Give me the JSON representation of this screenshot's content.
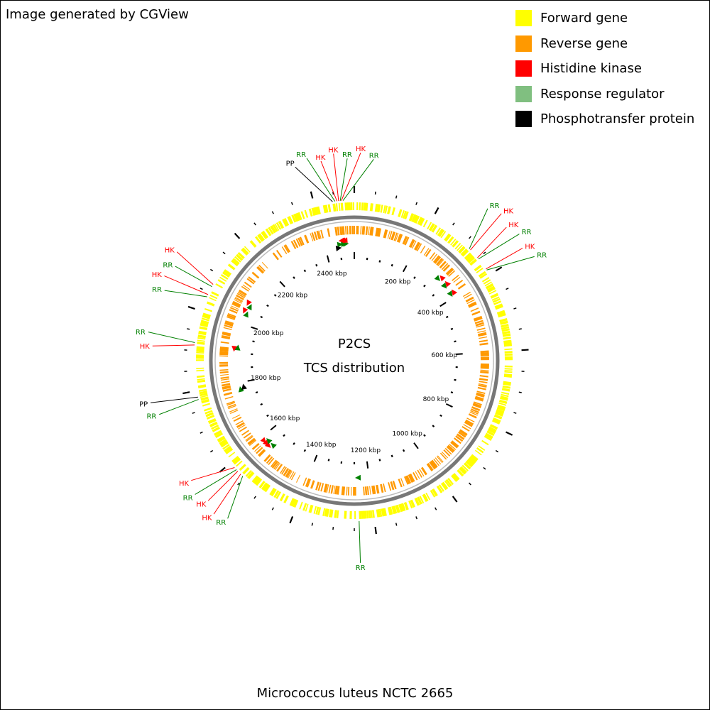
{
  "credit": "Image generated by CGView",
  "center": {
    "line1": "P2CS",
    "line2": "TCS distribution"
  },
  "footer": "Micrococcus luteus NCTC 2665",
  "genome_size_kbp": 2500,
  "legend": [
    {
      "key": "forward",
      "label": "Forward gene",
      "color": "#ffff00"
    },
    {
      "key": "reverse",
      "label": "Reverse gene",
      "color": "#ff9900"
    },
    {
      "key": "hk",
      "label": "Histidine kinase",
      "color": "#ff0000"
    },
    {
      "key": "rr",
      "label": "Response regulator",
      "color": "#80bf80"
    },
    {
      "key": "pp",
      "label": "Phosphotransfer protein",
      "color": "#000000"
    }
  ],
  "ring_colors": {
    "forward": "#ffff00",
    "reverse": "#ff9900",
    "backbone": "#777777",
    "hk_marker": "#ff0000",
    "rr_marker": "#008000",
    "pp_marker": "#000000",
    "hk_label": "#ff0000",
    "rr_label": "#008000",
    "pp_label": "#000000"
  },
  "tick_labels": [
    {
      "kbp": 200,
      "label": "200 kbp"
    },
    {
      "kbp": 400,
      "label": "400 kbp"
    },
    {
      "kbp": 600,
      "label": "600 kbp"
    },
    {
      "kbp": 800,
      "label": "800 kbp"
    },
    {
      "kbp": 1000,
      "label": "1000 kbp"
    },
    {
      "kbp": 1200,
      "label": "1200 kbp"
    },
    {
      "kbp": 1400,
      "label": "1400 kbp"
    },
    {
      "kbp": 1600,
      "label": "1600 kbp"
    },
    {
      "kbp": 1800,
      "label": "1800 kbp"
    },
    {
      "kbp": 2000,
      "label": "2000 kbp"
    },
    {
      "kbp": 2200,
      "label": "2200 kbp"
    },
    {
      "kbp": 2400,
      "label": "2400 kbp"
    }
  ],
  "features": [
    {
      "type": "RR",
      "kbp": 2472,
      "strand": "fwd"
    },
    {
      "type": "HK",
      "kbp": 2468,
      "strand": "rev"
    },
    {
      "type": "RR",
      "kbp": 2465,
      "strand": "fwd"
    },
    {
      "type": "HK",
      "kbp": 2461,
      "strand": "rev"
    },
    {
      "type": "HK",
      "kbp": 2457,
      "strand": "rev"
    },
    {
      "type": "RR",
      "kbp": 2452,
      "strand": "fwd"
    },
    {
      "type": "PP",
      "kbp": 2446,
      "strand": "fwd"
    },
    {
      "type": "RR",
      "kbp": 318,
      "strand": "fwd"
    },
    {
      "type": "HK",
      "kbp": 322,
      "strand": "rev"
    },
    {
      "type": "HK",
      "kbp": 348,
      "strand": "rev"
    },
    {
      "type": "RR",
      "kbp": 352,
      "strand": "fwd"
    },
    {
      "type": "HK",
      "kbp": 383,
      "strand": "rev"
    },
    {
      "type": "RR",
      "kbp": 386,
      "strand": "fwd"
    },
    {
      "type": "RR",
      "kbp": 1238,
      "strand": "fwd"
    },
    {
      "type": "RR",
      "kbp": 1556,
      "strand": "fwd"
    },
    {
      "type": "HK",
      "kbp": 1563,
      "strand": "rev"
    },
    {
      "type": "HK",
      "kbp": 1573,
      "strand": "rev"
    },
    {
      "type": "RR",
      "kbp": 1578,
      "strand": "fwd"
    },
    {
      "type": "HK",
      "kbp": 1585,
      "strand": "rev"
    },
    {
      "type": "RR",
      "kbp": 1778,
      "strand": "fwd"
    },
    {
      "type": "PP",
      "kbp": 1784,
      "strand": "fwd"
    },
    {
      "type": "HK",
      "kbp": 1914,
      "strand": "rev"
    },
    {
      "type": "RR",
      "kbp": 1920,
      "strand": "fwd"
    },
    {
      "type": "RR",
      "kbp": 2038,
      "strand": "fwd"
    },
    {
      "type": "HK",
      "kbp": 2044,
      "strand": "rev"
    },
    {
      "type": "RR",
      "kbp": 2066,
      "strand": "fwd"
    },
    {
      "type": "HK",
      "kbp": 2072,
      "strand": "rev"
    }
  ],
  "callouts": [
    {
      "type": "RR",
      "kbp": 2472,
      "text": "RR"
    },
    {
      "type": "HK",
      "kbp": 2468,
      "text": "HK"
    },
    {
      "type": "RR",
      "kbp": 2465,
      "text": "RR"
    },
    {
      "type": "HK",
      "kbp": 2461,
      "text": "HK"
    },
    {
      "type": "HK",
      "kbp": 2457,
      "text": "HK"
    },
    {
      "type": "RR",
      "kbp": 2452,
      "text": "RR"
    },
    {
      "type": "PP",
      "kbp": 2446,
      "text": "PP"
    },
    {
      "type": "RR",
      "kbp": 318,
      "text": "RR"
    },
    {
      "type": "HK",
      "kbp": 322,
      "text": "HK"
    },
    {
      "type": "HK",
      "kbp": 348,
      "text": "HK"
    },
    {
      "type": "RR",
      "kbp": 352,
      "text": "RR"
    },
    {
      "type": "HK",
      "kbp": 383,
      "text": "HK"
    },
    {
      "type": "RR",
      "kbp": 386,
      "text": "RR"
    },
    {
      "type": "RR",
      "kbp": 1238,
      "text": "RR"
    },
    {
      "type": "HK",
      "kbp": 1563,
      "text": "HK"
    },
    {
      "type": "RR",
      "kbp": 1556,
      "text": "RR"
    },
    {
      "type": "HK",
      "kbp": 1573,
      "text": "HK"
    },
    {
      "type": "HK",
      "kbp": 1585,
      "text": "HK"
    },
    {
      "type": "RR",
      "kbp": 1578,
      "text": "RR"
    },
    {
      "type": "PP",
      "kbp": 1784,
      "text": "PP"
    },
    {
      "type": "RR",
      "kbp": 1778,
      "text": "RR"
    },
    {
      "type": "RR",
      "kbp": 1920,
      "text": "RR"
    },
    {
      "type": "HK",
      "kbp": 1914,
      "text": "HK"
    },
    {
      "type": "RR",
      "kbp": 2038,
      "text": "RR"
    },
    {
      "type": "HK",
      "kbp": 2044,
      "text": "HK"
    },
    {
      "type": "RR",
      "kbp": 2066,
      "text": "RR"
    },
    {
      "type": "HK",
      "kbp": 2072,
      "text": "HK"
    }
  ]
}
